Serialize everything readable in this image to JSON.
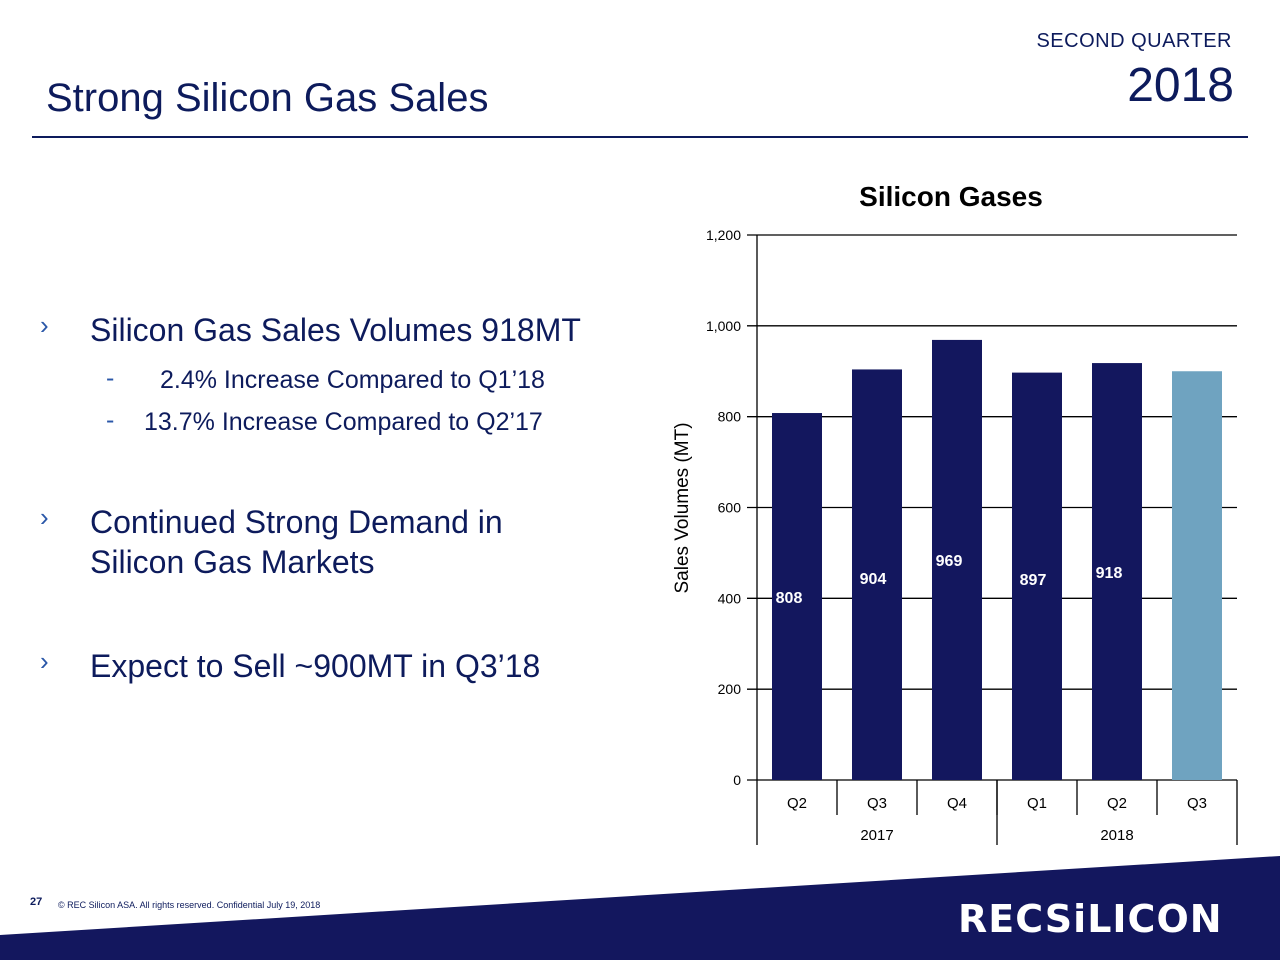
{
  "header": {
    "quarter": "SECOND QUARTER",
    "year": "2018"
  },
  "slide": {
    "title": "Strong Silicon Gas Sales"
  },
  "bullets": [
    {
      "text": "Silicon Gas Sales Volumes 918MT",
      "subs": [
        "2.4% Increase Compared to Q1’18",
        "13.7% Increase Compared to Q2’17"
      ]
    },
    {
      "text_lines": [
        "Continued Strong Demand in",
        "Silicon Gas Markets"
      ]
    },
    {
      "text": "Expect to Sell ~900MT in Q3’18"
    }
  ],
  "bullet_glyph": "›",
  "sub_glyph": "-",
  "footer": {
    "page_number": "27",
    "copyright": "©  REC Silicon ASA. All rights reserved. Confidential  July 19, 2018",
    "logo": "RECSiLICON"
  },
  "colors": {
    "navy": "#0d1b5c",
    "bar": "#13175e",
    "forecast_bar": "#6fa3c0",
    "footer_band": "#13175e"
  },
  "chart_data": {
    "type": "bar",
    "title": "Silicon Gases",
    "ylabel": "Sales Volumes (MT)",
    "ylim": [
      0,
      1200
    ],
    "yticks": [
      0,
      200,
      400,
      600,
      800,
      1000,
      1200
    ],
    "ytick_labels": [
      "0",
      "200",
      "400",
      "600",
      "800",
      "1,000",
      "1,200"
    ],
    "categories": [
      "Q2",
      "Q3",
      "Q4",
      "Q1",
      "Q2",
      "Q3"
    ],
    "groups": [
      {
        "label": "2017",
        "count": 3
      },
      {
        "label": "2018",
        "count": 3
      }
    ],
    "values": [
      808,
      904,
      969,
      897,
      918,
      900
    ],
    "data_labels": [
      "808",
      "904",
      "969",
      "897",
      "918",
      ""
    ],
    "forecast": [
      false,
      false,
      false,
      false,
      false,
      true
    ],
    "grid": true
  }
}
